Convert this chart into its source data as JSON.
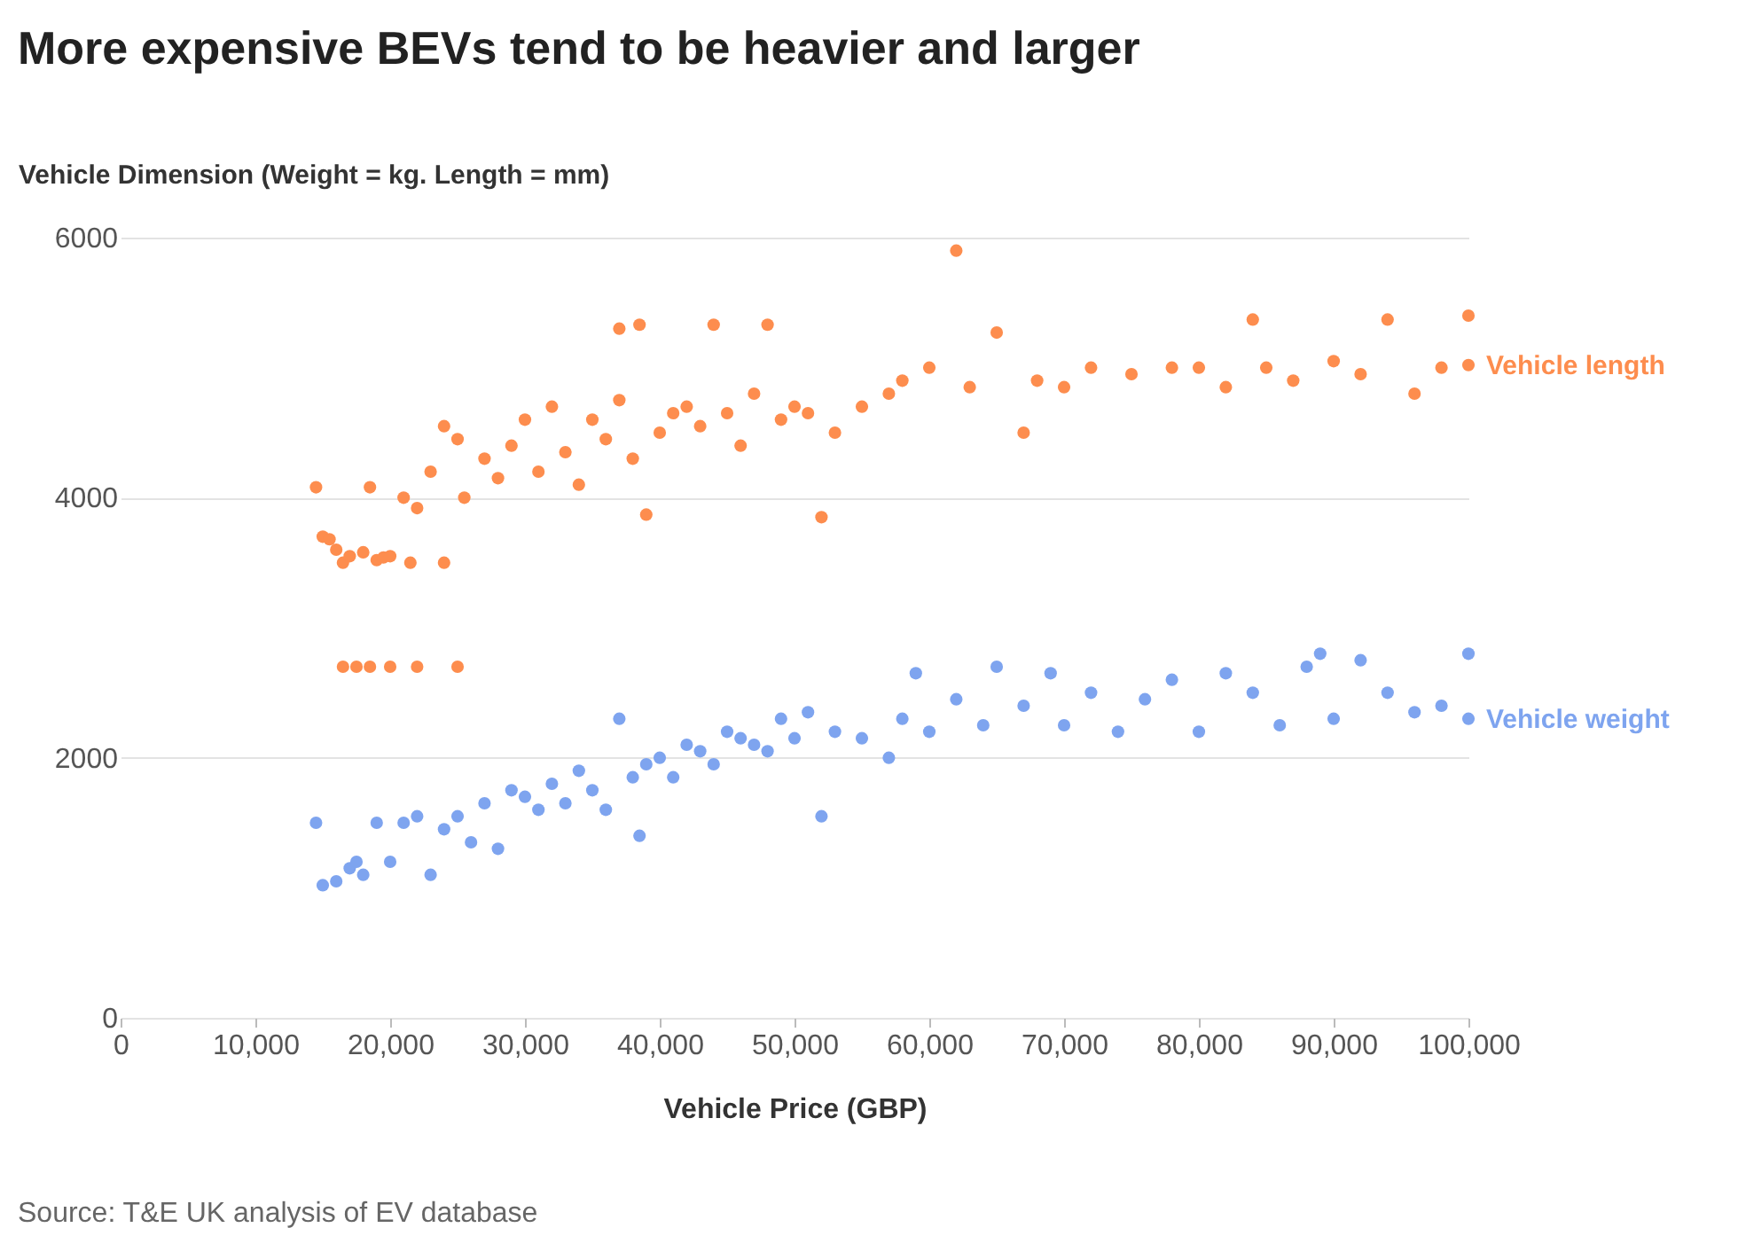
{
  "chart_data": {
    "type": "scatter",
    "title": "More expensive BEVs tend to be heavier and larger",
    "ylabel": "Vehicle Dimension (Weight = kg. Length = mm)",
    "xlabel": "Vehicle Price (GBP)",
    "annotations": [
      "Source: T&E UK analysis of EV database"
    ],
    "xlim": [
      0,
      100000
    ],
    "xticks": [
      0,
      {
        "value": 10000,
        "label": "10,000"
      },
      {
        "value": 20000,
        "label": "20,000"
      },
      {
        "value": 30000,
        "label": "30,000"
      },
      {
        "value": 40000,
        "label": "40,000"
      },
      {
        "value": 50000,
        "label": "50,000"
      },
      {
        "value": 60000,
        "label": "60,000"
      },
      {
        "value": 70000,
        "label": "70,000"
      },
      {
        "value": 80000,
        "label": "80,000"
      },
      {
        "value": 90000,
        "label": "90,000"
      },
      {
        "value": 100000,
        "label": "100,000"
      }
    ],
    "ylim": [
      0,
      6000
    ],
    "yticks": [
      0,
      2000,
      4000,
      6000
    ],
    "grid": "y",
    "legend": false,
    "marker": "circle",
    "series": [
      {
        "name": "Vehicle length",
        "color": "#fd8d4e",
        "x": [
          14500,
          15000,
          15500,
          16000,
          16500,
          17000,
          18000,
          18500,
          19000,
          19500,
          20000,
          21000,
          21500,
          22000,
          23000,
          24000,
          24000,
          25000,
          25500,
          27000,
          28000,
          29000,
          30000,
          31000,
          32000,
          33000,
          34000,
          35000,
          36000,
          37000,
          37000,
          38000,
          38500,
          39000,
          40000,
          41000,
          42000,
          43000,
          44000,
          45000,
          46000,
          47000,
          48000,
          49000,
          50000,
          51000,
          52000,
          53000,
          55000,
          57000,
          58000,
          60000,
          62000,
          63000,
          65000,
          67000,
          68000,
          70000,
          72000,
          75000,
          78000,
          80000,
          82000,
          84000,
          85000,
          87000,
          90000,
          92000,
          94000,
          96000,
          98000,
          16500,
          17500,
          18500,
          20000,
          22000,
          25000,
          100000,
          100000
        ],
        "values": [
          4080,
          3700,
          3680,
          3600,
          3500,
          3550,
          3580,
          4080,
          3520,
          3540,
          3550,
          4000,
          3500,
          3920,
          4200,
          3500,
          4550,
          4450,
          4000,
          4300,
          4150,
          4400,
          4600,
          4200,
          4700,
          4350,
          4100,
          4600,
          4450,
          4750,
          5300,
          4300,
          5330,
          3870,
          4500,
          4650,
          4700,
          4550,
          5330,
          4650,
          4400,
          4800,
          5330,
          4600,
          4700,
          4650,
          3850,
          4500,
          4700,
          4800,
          4900,
          5000,
          5900,
          4850,
          5270,
          4500,
          4900,
          4850,
          5000,
          4950,
          5000,
          5000,
          4850,
          5370,
          5000,
          4900,
          5050,
          4950,
          5370,
          4800,
          5000,
          2700,
          2700,
          2700,
          2700,
          2700,
          2700,
          5400,
          5020
        ]
      },
      {
        "name": "Vehicle weight",
        "color": "#7ea4ef",
        "x": [
          14500,
          15000,
          16000,
          17000,
          17500,
          18000,
          19000,
          20000,
          21000,
          22000,
          23000,
          24000,
          25000,
          26000,
          27000,
          28000,
          29000,
          30000,
          31000,
          32000,
          33000,
          34000,
          35000,
          36000,
          37000,
          38000,
          38500,
          39000,
          40000,
          41000,
          42000,
          43000,
          44000,
          45000,
          46000,
          47000,
          48000,
          49000,
          50000,
          51000,
          52000,
          53000,
          55000,
          57000,
          58000,
          59000,
          60000,
          62000,
          64000,
          65000,
          67000,
          69000,
          70000,
          72000,
          74000,
          76000,
          78000,
          80000,
          82000,
          84000,
          86000,
          88000,
          89000,
          90000,
          92000,
          94000,
          96000,
          98000,
          100000,
          100000
        ],
        "values": [
          1500,
          1020,
          1050,
          1150,
          1200,
          1100,
          1500,
          1200,
          1500,
          1550,
          1100,
          1450,
          1550,
          1350,
          1650,
          1300,
          1750,
          1700,
          1600,
          1800,
          1650,
          1900,
          1750,
          1600,
          2300,
          1850,
          1400,
          1950,
          2000,
          1850,
          2100,
          2050,
          1950,
          2200,
          2150,
          2100,
          2050,
          2300,
          2150,
          2350,
          1550,
          2200,
          2150,
          2000,
          2300,
          2650,
          2200,
          2450,
          2250,
          2700,
          2400,
          2650,
          2250,
          2500,
          2200,
          2450,
          2600,
          2200,
          2650,
          2500,
          2250,
          2700,
          2800,
          2300,
          2750,
          2500,
          2350,
          2400,
          2800,
          2300
        ]
      }
    ]
  }
}
